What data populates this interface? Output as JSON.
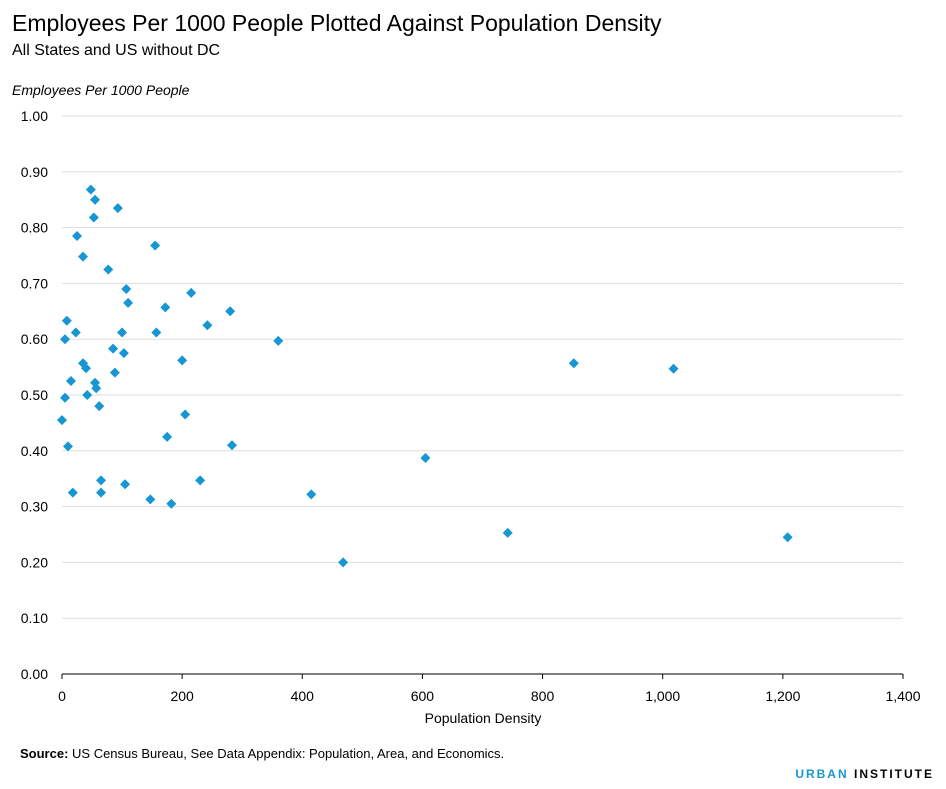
{
  "header": {
    "title": "Employees Per 1000 People Plotted Against Population Density",
    "subtitle": "All States and US without DC"
  },
  "footer": {
    "source_label": "Source:",
    "source_text": " US Census Bureau, See Data Appendix: Population, Area, and Economics.",
    "brand_part1": "URBAN",
    "brand_part2": "INSTITUTE"
  },
  "colors": {
    "marker": "#1696d2",
    "grid": "#dedede",
    "axis": "#000000",
    "brand_accent": "#1696d2"
  },
  "chart_data": {
    "type": "scatter",
    "title": "Employees Per 1000 People Plotted Against Population Density",
    "subtitle": "All States and US without DC",
    "xlabel": "Population Density",
    "ylabel": "Employees Per 1000 People",
    "xlim": [
      0,
      1400
    ],
    "ylim": [
      0,
      1.0
    ],
    "x_ticks": [
      0,
      200,
      400,
      600,
      800,
      1000,
      1200,
      1400
    ],
    "x_tick_labels": [
      "0",
      "200",
      "400",
      "600",
      "800",
      "1,000",
      "1,200",
      "1,400"
    ],
    "y_ticks": [
      0,
      0.1,
      0.2,
      0.3,
      0.4,
      0.5,
      0.6,
      0.7,
      0.8,
      0.9,
      1.0
    ],
    "y_tick_labels": [
      "0.00",
      "0.10",
      "0.20",
      "0.30",
      "0.40",
      "0.50",
      "0.60",
      "0.70",
      "0.80",
      "0.90",
      "1.00"
    ],
    "grid": "horizontal",
    "marker": "diamond",
    "points": [
      {
        "x": 0,
        "y": 0.455
      },
      {
        "x": 5,
        "y": 0.495
      },
      {
        "x": 5,
        "y": 0.6
      },
      {
        "x": 8,
        "y": 0.633
      },
      {
        "x": 10,
        "y": 0.408
      },
      {
        "x": 15,
        "y": 0.525
      },
      {
        "x": 18,
        "y": 0.325
      },
      {
        "x": 23,
        "y": 0.612
      },
      {
        "x": 25,
        "y": 0.785
      },
      {
        "x": 35,
        "y": 0.748
      },
      {
        "x": 35,
        "y": 0.557
      },
      {
        "x": 40,
        "y": 0.548
      },
      {
        "x": 42,
        "y": 0.5
      },
      {
        "x": 48,
        "y": 0.868
      },
      {
        "x": 53,
        "y": 0.818
      },
      {
        "x": 55,
        "y": 0.85
      },
      {
        "x": 55,
        "y": 0.522
      },
      {
        "x": 57,
        "y": 0.512
      },
      {
        "x": 62,
        "y": 0.48
      },
      {
        "x": 65,
        "y": 0.347
      },
      {
        "x": 65,
        "y": 0.325
      },
      {
        "x": 77,
        "y": 0.725
      },
      {
        "x": 85,
        "y": 0.583
      },
      {
        "x": 88,
        "y": 0.54
      },
      {
        "x": 93,
        "y": 0.835
      },
      {
        "x": 100,
        "y": 0.612
      },
      {
        "x": 103,
        "y": 0.575
      },
      {
        "x": 105,
        "y": 0.34
      },
      {
        "x": 107,
        "y": 0.69
      },
      {
        "x": 110,
        "y": 0.665
      },
      {
        "x": 147,
        "y": 0.313
      },
      {
        "x": 155,
        "y": 0.768
      },
      {
        "x": 157,
        "y": 0.612
      },
      {
        "x": 172,
        "y": 0.657
      },
      {
        "x": 175,
        "y": 0.425
      },
      {
        "x": 182,
        "y": 0.305
      },
      {
        "x": 200,
        "y": 0.562
      },
      {
        "x": 205,
        "y": 0.465
      },
      {
        "x": 215,
        "y": 0.683
      },
      {
        "x": 230,
        "y": 0.347
      },
      {
        "x": 242,
        "y": 0.625
      },
      {
        "x": 280,
        "y": 0.65
      },
      {
        "x": 283,
        "y": 0.41
      },
      {
        "x": 360,
        "y": 0.597
      },
      {
        "x": 415,
        "y": 0.322
      },
      {
        "x": 468,
        "y": 0.2
      },
      {
        "x": 605,
        "y": 0.387
      },
      {
        "x": 742,
        "y": 0.253
      },
      {
        "x": 852,
        "y": 0.557
      },
      {
        "x": 1018,
        "y": 0.547
      },
      {
        "x": 1208,
        "y": 0.245
      }
    ]
  }
}
